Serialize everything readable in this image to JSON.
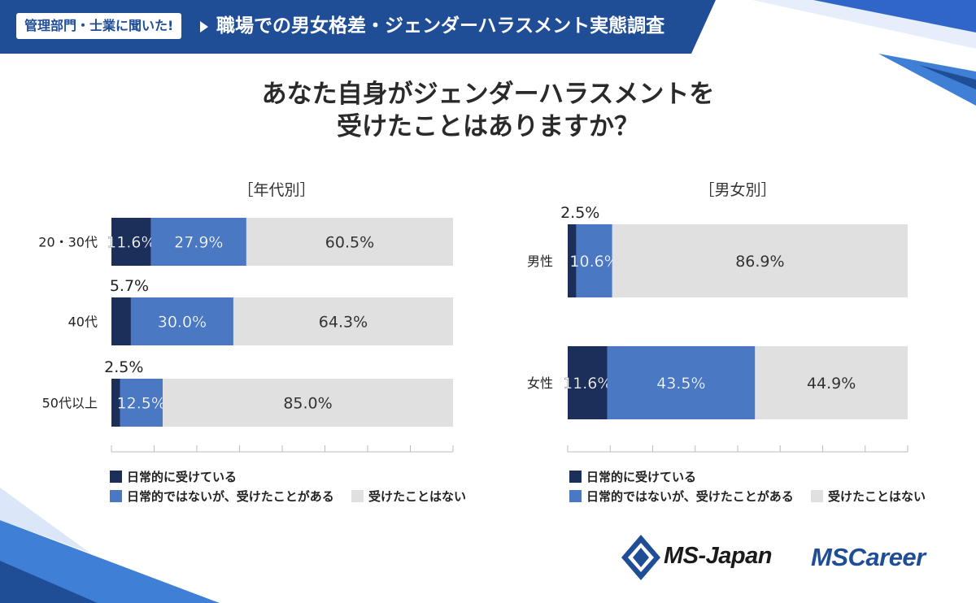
{
  "header": {
    "badge": "管理部門・士業に聞いた!",
    "title": "職場での男女格差・ジェンダーハラスメント実態調査"
  },
  "question": {
    "line1": "あなた自身がジェンダーハラスメントを",
    "line2": "受けたことはありますか？"
  },
  "colors": {
    "header_blue": "#1f4e96",
    "dark_navy": "#1c2f5a",
    "mid_blue": "#4a78c2",
    "light_gray": "#e0e0e0",
    "accent_light_blue": "#3f7fd6"
  },
  "legend_labels": [
    "日常的に受けている",
    "日常的ではないが、受けたことがある",
    "受けたことはない"
  ],
  "chart_data": [
    {
      "type": "bar",
      "orientation": "horizontal",
      "stacked": true,
      "title": "［年代別］",
      "categories": [
        "20・30代",
        "40代",
        "50代以上"
      ],
      "series": [
        {
          "name": "日常的に受けている",
          "values": [
            11.6,
            5.7,
            2.5
          ],
          "labels": [
            "11.6%",
            "5.7%",
            "2.5%"
          ]
        },
        {
          "name": "日常的ではないが、受けたことがある",
          "values": [
            27.9,
            30.0,
            12.5
          ],
          "labels": [
            "27.9%",
            "30.0%",
            "12.5%"
          ]
        },
        {
          "name": "受けたことはない",
          "values": [
            60.5,
            64.3,
            85.0
          ],
          "labels": [
            "60.5%",
            "64.3%",
            "85.0%"
          ]
        }
      ],
      "xlim": [
        0,
        100
      ],
      "unit": "%"
    },
    {
      "type": "bar",
      "orientation": "horizontal",
      "stacked": true,
      "title": "［男女別］",
      "categories": [
        "男性",
        "女性"
      ],
      "series": [
        {
          "name": "日常的に受けている",
          "values": [
            2.5,
            11.6
          ],
          "labels": [
            "2.5%",
            "11.6%"
          ]
        },
        {
          "name": "日常的ではないが、受けたことがある",
          "values": [
            10.6,
            43.5
          ],
          "labels": [
            "10.6%",
            "43.5%"
          ]
        },
        {
          "name": "受けたことはない",
          "values": [
            86.9,
            44.9
          ],
          "labels": [
            "86.9%",
            "44.9%"
          ]
        }
      ],
      "xlim": [
        0,
        100
      ],
      "unit": "%"
    }
  ],
  "logos": {
    "msjapan": "MS-Japan",
    "mscareer": "MSCareer"
  }
}
